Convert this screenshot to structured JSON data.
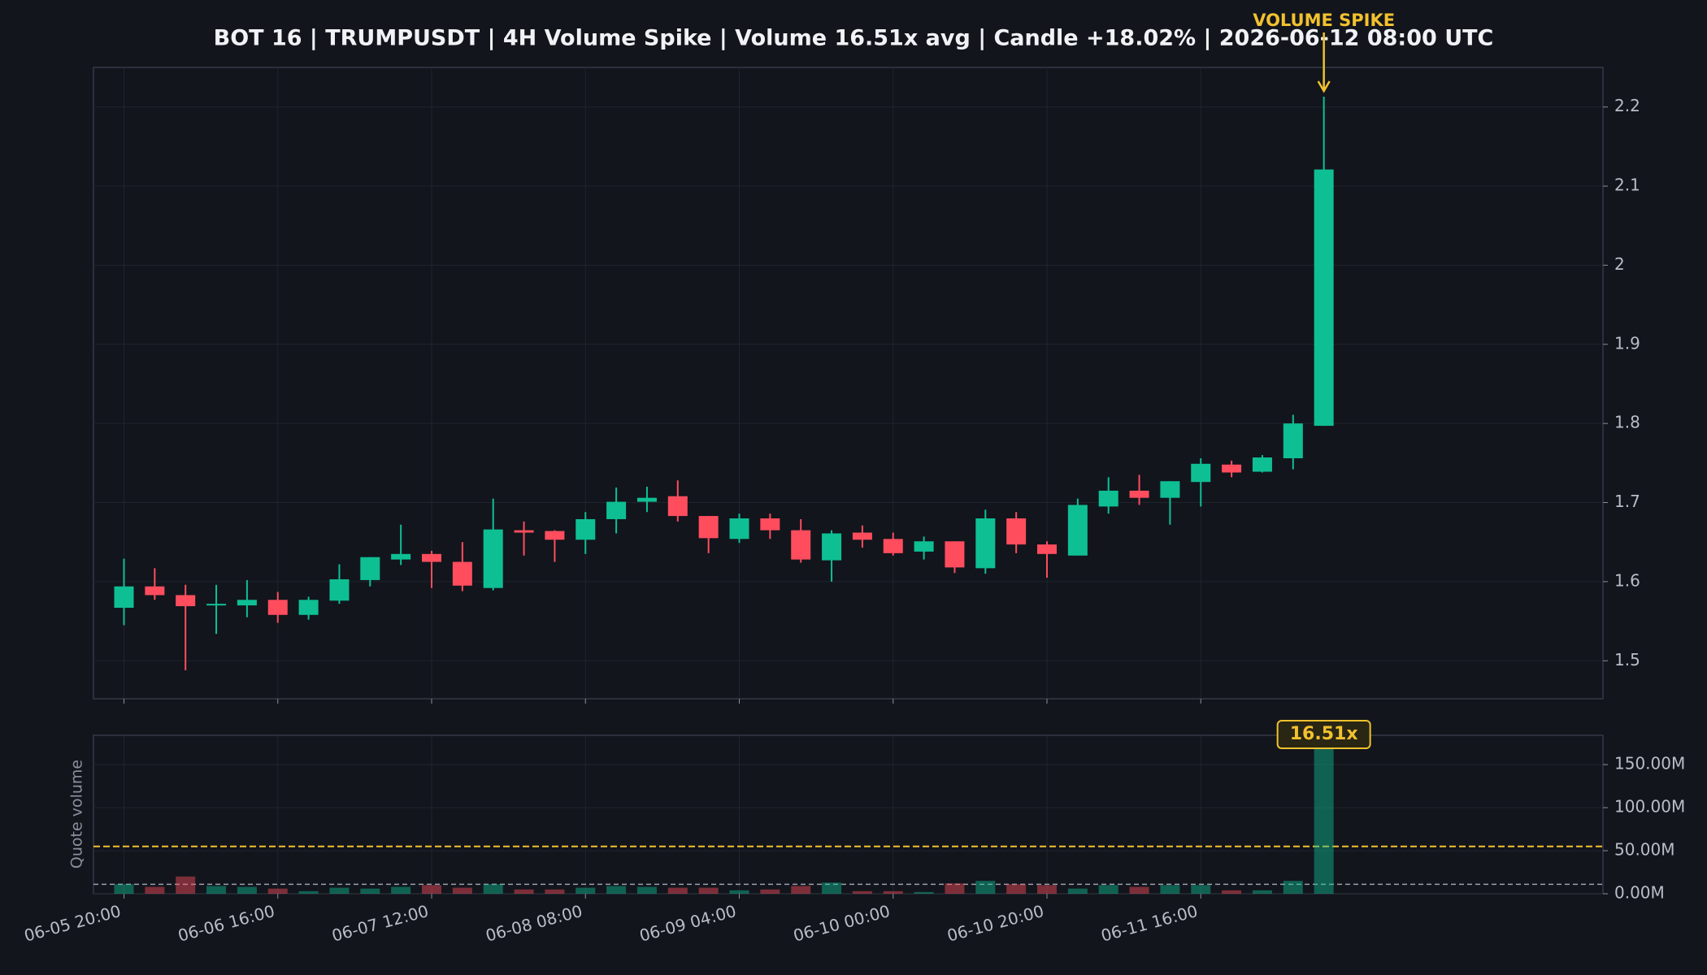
{
  "chart_data": {
    "type": "candlestick",
    "title": "BOT 16 | TRUMPUSDT | 4H Volume Spike | Volume 16.51x avg | Candle +18.02% | 2026-06-12 08:00 UTC",
    "categories": [
      "06-05 20:00",
      null,
      null,
      null,
      null,
      "06-06 16:00",
      null,
      null,
      null,
      null,
      "06-07 12:00",
      null,
      null,
      null,
      null,
      "06-08 08:00",
      null,
      null,
      null,
      null,
      "06-09 04:00",
      null,
      null,
      null,
      null,
      "06-10 00:00",
      null,
      null,
      null,
      null,
      "06-10 20:00",
      null,
      null,
      null,
      null,
      "06-11 16:00",
      null,
      null,
      null,
      null
    ],
    "open": [
      1.567,
      1.594,
      1.583,
      1.57,
      1.57,
      1.577,
      1.558,
      1.576,
      1.602,
      1.628,
      1.635,
      1.625,
      1.592,
      1.665,
      1.664,
      1.653,
      1.679,
      1.701,
      1.708,
      1.683,
      1.654,
      1.68,
      1.665,
      1.627,
      1.662,
      1.654,
      1.638,
      1.651,
      1.617,
      1.68,
      1.647,
      1.633,
      1.695,
      1.715,
      1.706,
      1.726,
      1.748,
      1.739,
      1.756,
      1.797
    ],
    "high": [
      1.629,
      1.617,
      1.596,
      1.596,
      1.602,
      1.587,
      1.581,
      1.622,
      1.631,
      1.672,
      1.639,
      1.65,
      1.705,
      1.676,
      1.665,
      1.688,
      1.719,
      1.72,
      1.728,
      1.683,
      1.686,
      1.686,
      1.679,
      1.665,
      1.671,
      1.662,
      1.657,
      1.651,
      1.691,
      1.688,
      1.651,
      1.705,
      1.732,
      1.735,
      1.727,
      1.756,
      1.753,
      1.76,
      1.811,
      2.213
    ],
    "low": [
      1.545,
      1.577,
      1.488,
      1.534,
      1.555,
      1.548,
      1.552,
      1.572,
      1.594,
      1.621,
      1.592,
      1.588,
      1.589,
      1.633,
      1.625,
      1.635,
      1.661,
      1.688,
      1.676,
      1.636,
      1.649,
      1.654,
      1.624,
      1.6,
      1.643,
      1.633,
      1.628,
      1.611,
      1.61,
      1.636,
      1.605,
      1.633,
      1.686,
      1.697,
      1.672,
      1.695,
      1.732,
      1.738,
      1.742,
      1.797
    ],
    "close": [
      1.594,
      1.583,
      1.569,
      1.572,
      1.577,
      1.558,
      1.577,
      1.603,
      1.631,
      1.635,
      1.625,
      1.595,
      1.666,
      1.662,
      1.653,
      1.679,
      1.701,
      1.706,
      1.683,
      1.655,
      1.68,
      1.665,
      1.628,
      1.661,
      1.653,
      1.636,
      1.651,
      1.618,
      1.68,
      1.647,
      1.635,
      1.697,
      1.715,
      1.706,
      1.727,
      1.749,
      1.738,
      1.757,
      1.8,
      2.121
    ],
    "up_color": "#0fbf94",
    "down_color": "#ff4d5e",
    "ylim": [
      1.452,
      2.25
    ],
    "yticks": [
      1.5,
      1.6,
      1.7,
      1.8,
      1.9,
      2,
      2.1,
      2.2
    ],
    "grid": true,
    "annotation": "VOLUME SPIKE",
    "annotation_color": "#f2c12e",
    "volume_label": "Quote volume",
    "volume": [
      11000000,
      8000000,
      20000000,
      9000000,
      8000000,
      6000000,
      3000000,
      7000000,
      6000000,
      8000000,
      10000000,
      7000000,
      11000000,
      5000000,
      5000000,
      7000000,
      9000000,
      8000000,
      7000000,
      7000000,
      4000000,
      5000000,
      9000000,
      13000000,
      3000000,
      3000000,
      2000000,
      12000000,
      15000000,
      11000000,
      10000000,
      6000000,
      10000000,
      8000000,
      10000000,
      10000000,
      4000000,
      4000000,
      15000000,
      181600000
    ],
    "volume_ylim": [
      0,
      184000000
    ],
    "volume_yticks": [
      {
        "value": 0,
        "label": "0.00M"
      },
      {
        "value": 50000000,
        "label": "50.00M"
      },
      {
        "value": 100000000,
        "label": "100.00M"
      },
      {
        "value": 150000000,
        "label": "150.00M"
      }
    ],
    "avg_volume": 11000000,
    "threshold_volume": 55000000,
    "volume_badge": "16.51x"
  }
}
